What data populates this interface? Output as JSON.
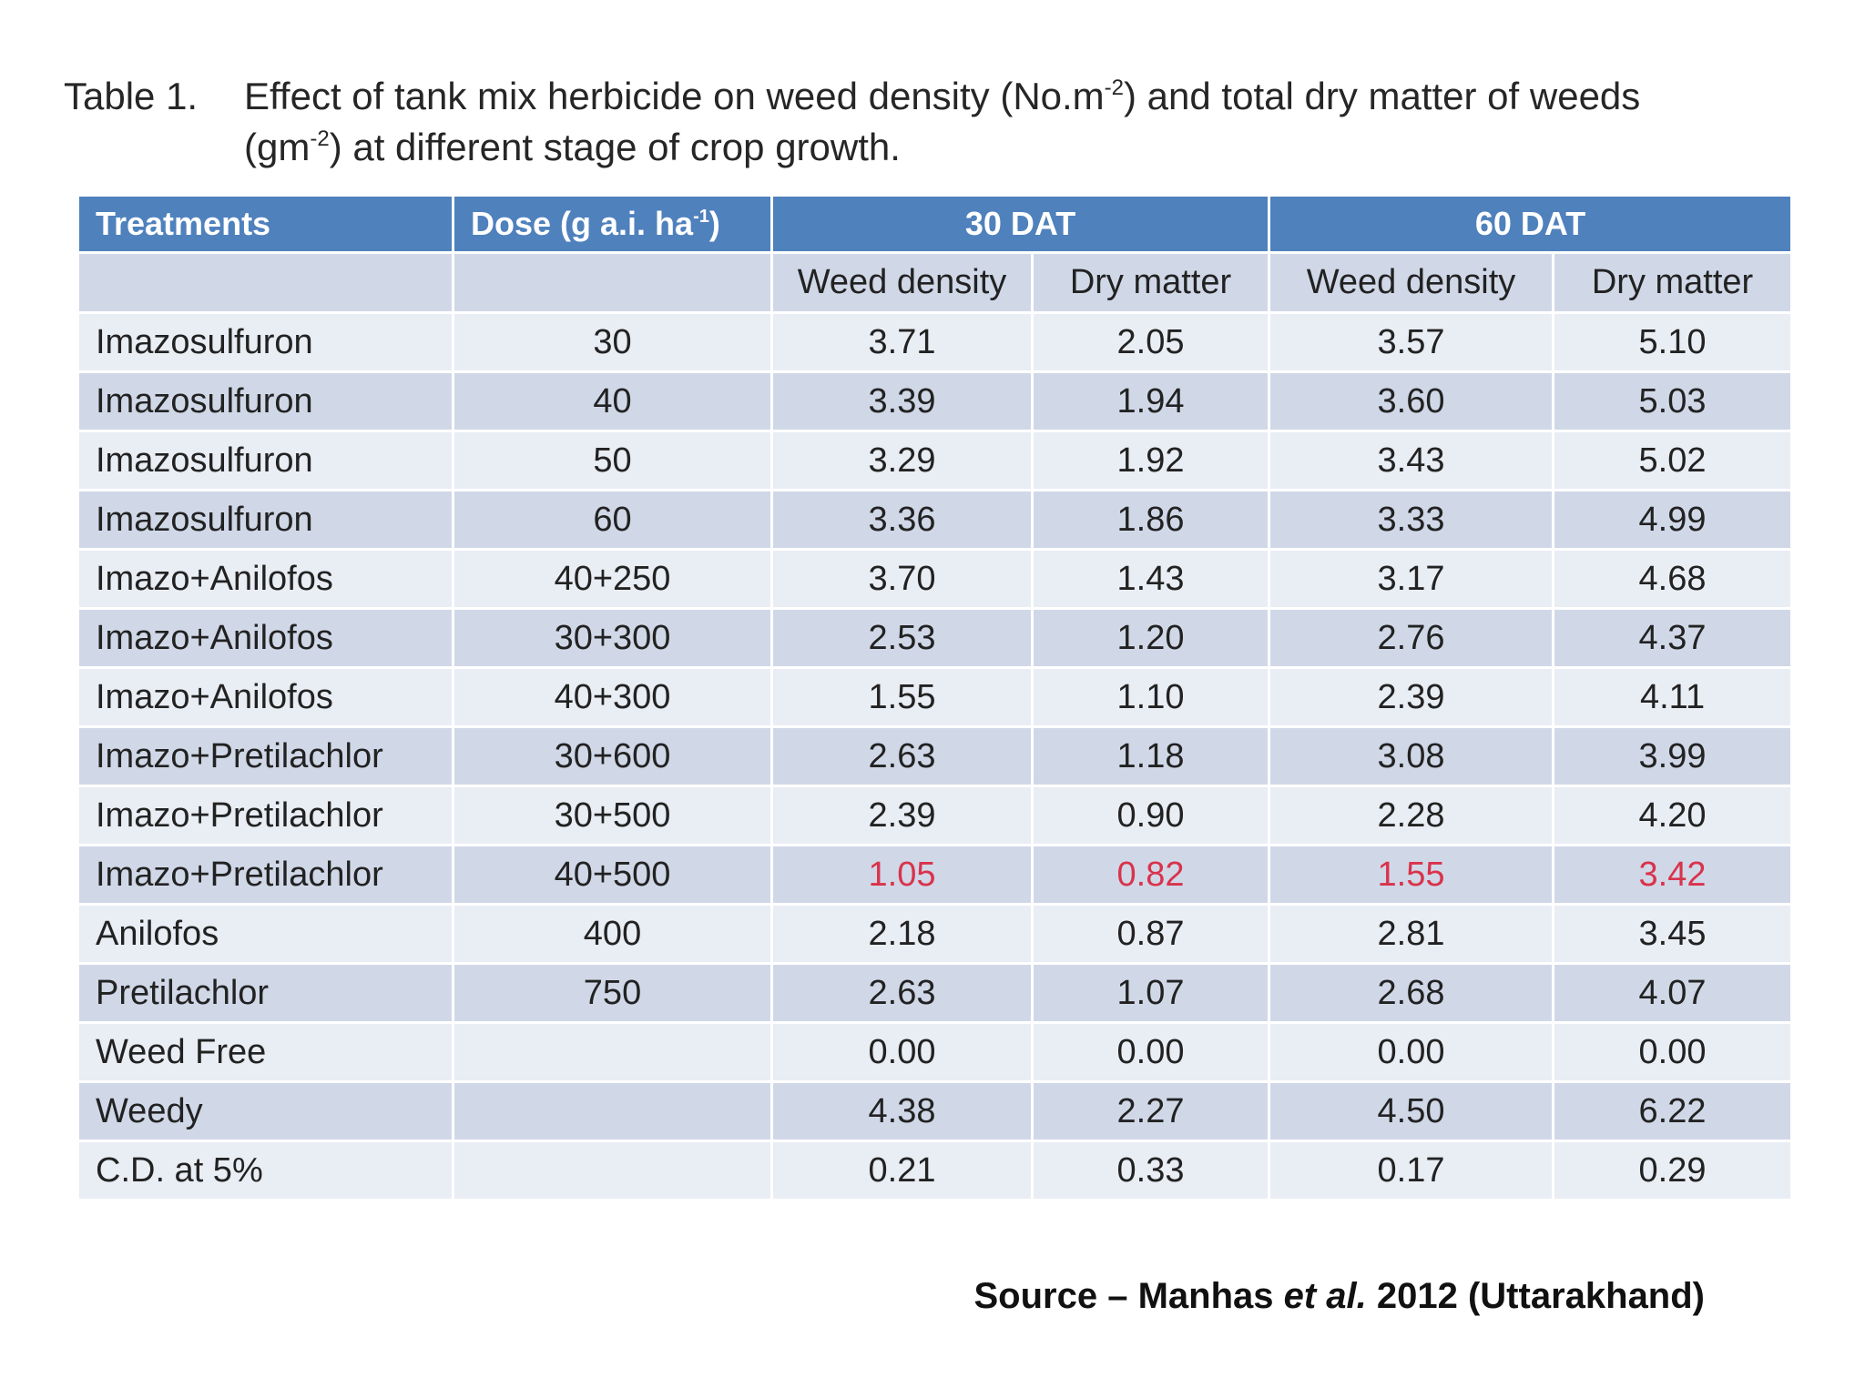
{
  "caption": {
    "label": "Table 1.",
    "line1_a": "Effect of tank mix herbicide on weed density (No.m",
    "line1_sup": "-2",
    "line1_b": ") and total dry matter of weeds",
    "line2_a": "(gm",
    "line2_sup": "-2",
    "line2_b": ") at different stage of crop growth."
  },
  "table": {
    "header": {
      "treatments": "Treatments",
      "dose_a": "Dose (g a.i. ha",
      "dose_sup": "-1",
      "dose_b": ")",
      "dat30": "30 DAT",
      "dat60": "60 DAT"
    },
    "subheader": [
      "Weed density",
      "Dry matter",
      "Weed density",
      "Dry matter"
    ],
    "rows": [
      {
        "treatment": "Imazosulfuron",
        "dose": "30",
        "wd30": "3.71",
        "dm30": "2.05",
        "wd60": "3.57",
        "dm60": "5.10"
      },
      {
        "treatment": "Imazosulfuron",
        "dose": "40",
        "wd30": "3.39",
        "dm30": "1.94",
        "wd60": "3.60",
        "dm60": "5.03"
      },
      {
        "treatment": "Imazosulfuron",
        "dose": "50",
        "wd30": "3.29",
        "dm30": "1.92",
        "wd60": "3.43",
        "dm60": "5.02"
      },
      {
        "treatment": "Imazosulfuron",
        "dose": "60",
        "wd30": "3.36",
        "dm30": "1.86",
        "wd60": "3.33",
        "dm60": "4.99"
      },
      {
        "treatment": "Imazo+Anilofos",
        "dose": "40+250",
        "wd30": "3.70",
        "dm30": "1.43",
        "wd60": "3.17",
        "dm60": "4.68"
      },
      {
        "treatment": "Imazo+Anilofos",
        "dose": "30+300",
        "wd30": "2.53",
        "dm30": "1.20",
        "wd60": "2.76",
        "dm60": "4.37"
      },
      {
        "treatment": "Imazo+Anilofos",
        "dose": "40+300",
        "wd30": "1.55",
        "dm30": "1.10",
        "wd60": "2.39",
        "dm60": "4.11"
      },
      {
        "treatment": "Imazo+Pretilachlor",
        "dose": "30+600",
        "wd30": "2.63",
        "dm30": "1.18",
        "wd60": "3.08",
        "dm60": "3.99"
      },
      {
        "treatment": "Imazo+Pretilachlor",
        "dose": "30+500",
        "wd30": "2.39",
        "dm30": "0.90",
        "wd60": "2.28",
        "dm60": "4.20"
      },
      {
        "treatment": "Imazo+Pretilachlor",
        "dose": "40+500",
        "wd30": "1.05",
        "dm30": "0.82",
        "wd60": "1.55",
        "dm60": "3.42"
      },
      {
        "treatment": "Anilofos",
        "dose": "400",
        "wd30": "2.18",
        "dm30": "0.87",
        "wd60": "2.81",
        "dm60": "3.45"
      },
      {
        "treatment": "Pretilachlor",
        "dose": "750",
        "wd30": "2.63",
        "dm30": "1.07",
        "wd60": "2.68",
        "dm60": "4.07"
      },
      {
        "treatment": "Weed Free",
        "dose": "",
        "wd30": "0.00",
        "dm30": "0.00",
        "wd60": "0.00",
        "dm60": "0.00"
      },
      {
        "treatment": "Weedy",
        "dose": "",
        "wd30": "4.38",
        "dm30": "2.27",
        "wd60": "4.50",
        "dm60": "6.22"
      },
      {
        "treatment": "C.D. at 5%",
        "dose": "",
        "wd30": "0.21",
        "dm30": "0.33",
        "wd60": "0.17",
        "dm60": "0.29"
      }
    ]
  },
  "source": {
    "prefix": "Source – Manhas ",
    "etal": "et al.",
    "suffix": " 2012 (Uttarakhand)"
  },
  "colors": {
    "header_blue": "#4f81bd",
    "row_light": "#e9edf4",
    "row_dark": "#d0d8e8",
    "highlight_red": "#d9334b"
  }
}
